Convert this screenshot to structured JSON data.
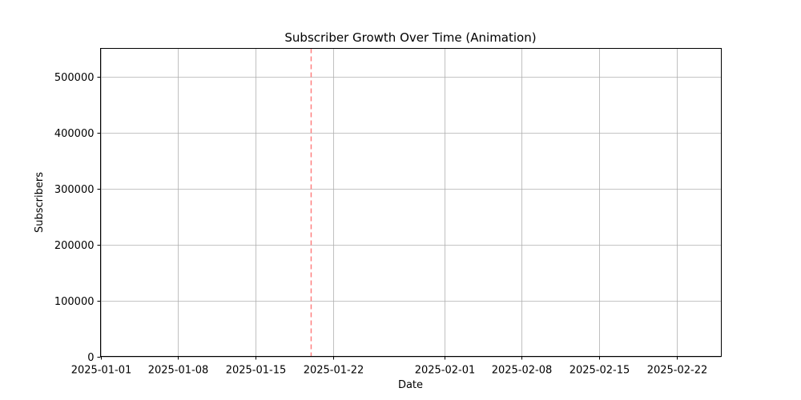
{
  "chart_data": {
    "type": "line",
    "title": "Subscriber Growth Over Time (Animation)",
    "xlabel": "Date",
    "ylabel": "Subscribers",
    "xlim": [
      "2025-01-01",
      "2025-02-26"
    ],
    "ylim": [
      0,
      550000
    ],
    "x_ticks": [
      "2025-01-01",
      "2025-01-08",
      "2025-01-15",
      "2025-01-22",
      "2025-02-01",
      "2025-02-08",
      "2025-02-15",
      "2025-02-22"
    ],
    "y_ticks": [
      0,
      100000,
      200000,
      300000,
      400000,
      500000
    ],
    "grid": true,
    "series": [],
    "current_date_marker": {
      "date": "2025-01-20",
      "color": "#ff7f7f",
      "style": "dashed"
    }
  }
}
